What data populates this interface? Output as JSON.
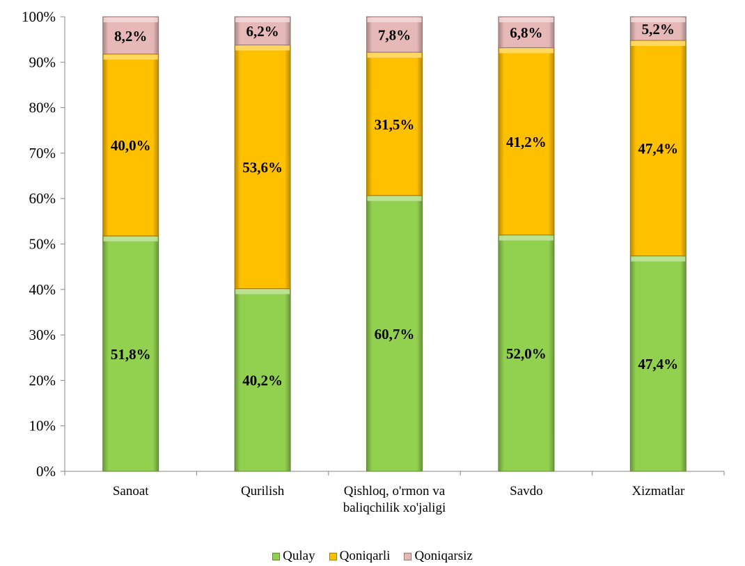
{
  "chart_data": {
    "type": "bar",
    "stacked": true,
    "percent_stacked": true,
    "categories": [
      "Sanoat",
      "Qurilish",
      [
        "Qishloq, o'rmon va",
        "baliqchilik xo'jaligi"
      ],
      "Savdo",
      "Xizmatlar"
    ],
    "series": [
      {
        "name": "Qulay",
        "values": [
          51.8,
          40.2,
          60.7,
          52.0,
          47.4
        ],
        "labels": [
          "51,8%",
          "40,2%",
          "60,7%",
          "52,0%",
          "47,4%"
        ],
        "color": "#92D050"
      },
      {
        "name": "Qoniqarli",
        "values": [
          40.0,
          53.6,
          31.5,
          41.2,
          47.4
        ],
        "labels": [
          "40,0%",
          "53,6%",
          "31,5%",
          "41,2%",
          "47,4%"
        ],
        "color": "#FFC000"
      },
      {
        "name": "Qoniqarsiz",
        "values": [
          8.2,
          6.2,
          7.8,
          6.8,
          5.2
        ],
        "labels": [
          "8,2%",
          "6,2%",
          "7,8%",
          "6,8%",
          "5,2%"
        ],
        "color": "#E6B9B8"
      }
    ],
    "yticks": [
      "0%",
      "10%",
      "20%",
      "30%",
      "40%",
      "50%",
      "60%",
      "70%",
      "80%",
      "90%",
      "100%"
    ],
    "ylim": [
      0,
      100
    ],
    "grid": false,
    "legend_position": "bottom"
  }
}
